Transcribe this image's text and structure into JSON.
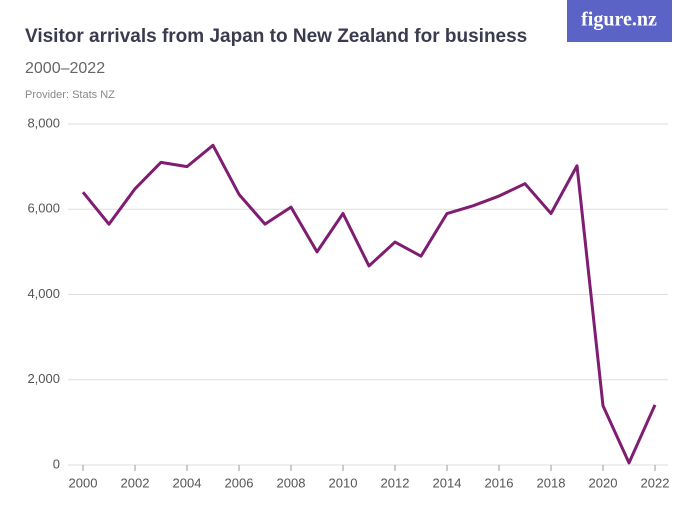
{
  "brand": "figure.nz",
  "chart_data": {
    "type": "line",
    "title": "Visitor arrivals from Japan to New Zealand for business",
    "subtitle": "2000–2022",
    "provider": "Provider: Stats NZ",
    "x": [
      2000,
      2001,
      2002,
      2003,
      2004,
      2005,
      2006,
      2007,
      2008,
      2009,
      2010,
      2011,
      2012,
      2013,
      2014,
      2015,
      2016,
      2017,
      2018,
      2019,
      2020,
      2021,
      2022
    ],
    "series": [
      {
        "name": "Visitor arrivals",
        "color": "#7e1d72",
        "values": [
          6400,
          5650,
          6480,
          7100,
          7000,
          7500,
          6350,
          5650,
          6050,
          5000,
          5900,
          4670,
          5230,
          4900,
          5900,
          6080,
          6310,
          6600,
          5900,
          7020,
          1390,
          50,
          1410
        ]
      }
    ],
    "xlim": [
      2000,
      2022
    ],
    "xticks": [
      2000,
      2002,
      2004,
      2006,
      2008,
      2010,
      2012,
      2014,
      2016,
      2018,
      2020,
      2022
    ],
    "ylim": [
      0,
      8000
    ],
    "yticks": [
      0,
      {
        "value": 2000,
        "label": "2,000"
      },
      {
        "value": 4000,
        "label": "4,000"
      },
      {
        "value": 6000,
        "label": "6,000"
      },
      {
        "value": 8000,
        "label": "8,000"
      }
    ],
    "grid": true
  }
}
